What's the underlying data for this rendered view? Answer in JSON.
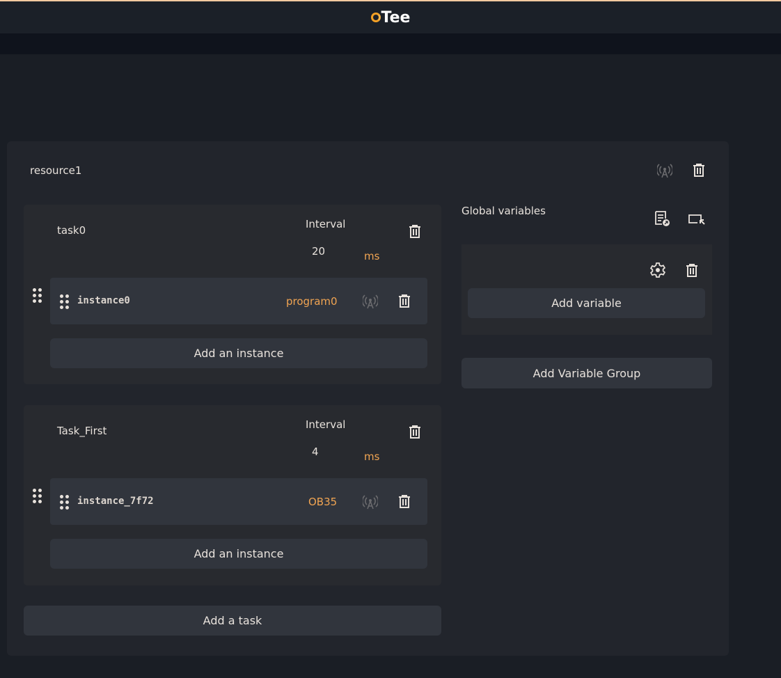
{
  "header": {
    "logo": "Tee"
  },
  "resource": {
    "name": "resource1"
  },
  "tasks": [
    {
      "name": "task0",
      "interval_label": "Interval",
      "interval": "20",
      "unit": "ms",
      "instances": [
        {
          "name": "instance0",
          "program": "program0"
        }
      ],
      "add_instance": "Add an instance"
    },
    {
      "name": "Task_First",
      "interval_label": "Interval",
      "interval": "4",
      "unit": "ms",
      "instances": [
        {
          "name": "instance_7f72",
          "program": "OB35"
        }
      ],
      "add_instance": "Add an instance"
    }
  ],
  "add_task": "Add a task",
  "globals": {
    "title": "Global variables",
    "add_variable": "Add variable",
    "add_group": "Add Variable Group"
  },
  "colors": {
    "accent": "#f0a452",
    "background": "#1a1e25"
  }
}
